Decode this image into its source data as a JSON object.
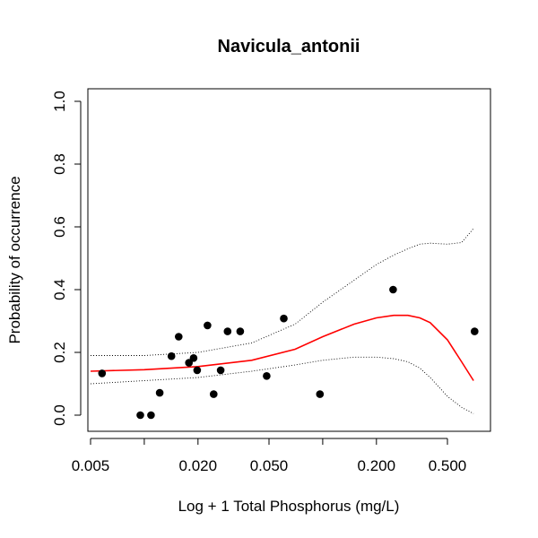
{
  "chart_data": {
    "type": "scatter",
    "title": "Navicula_antonii",
    "xlabel": "Log + 1 Total Phosphorus (mg/L)",
    "ylabel": "Probability of occurrence",
    "x_scale": "log",
    "xlim": [
      0.005,
      0.75
    ],
    "ylim": [
      0,
      1
    ],
    "x_ticks": [
      {
        "value": 0.005,
        "label": "0.005"
      },
      {
        "value": 0.02,
        "label": "0.020"
      },
      {
        "value": 0.05,
        "label": "0.050"
      },
      {
        "value": 0.2,
        "label": "0.200"
      },
      {
        "value": 0.5,
        "label": "0.500"
      }
    ],
    "x_minor_ticks": [
      0.01,
      0.1
    ],
    "y_ticks": [
      {
        "value": 0.0,
        "label": "0.0"
      },
      {
        "value": 0.2,
        "label": "0.2"
      },
      {
        "value": 0.4,
        "label": "0.4"
      },
      {
        "value": 0.6,
        "label": "0.6"
      },
      {
        "value": 0.8,
        "label": "0.8"
      },
      {
        "value": 1.0,
        "label": "1.0"
      }
    ],
    "grid": false,
    "points": [
      {
        "x": 0.0058,
        "y": 0.133
      },
      {
        "x": 0.0095,
        "y": 0.0
      },
      {
        "x": 0.0109,
        "y": 0.0
      },
      {
        "x": 0.0122,
        "y": 0.071
      },
      {
        "x": 0.0142,
        "y": 0.188
      },
      {
        "x": 0.0156,
        "y": 0.25
      },
      {
        "x": 0.0178,
        "y": 0.167
      },
      {
        "x": 0.0189,
        "y": 0.182
      },
      {
        "x": 0.0198,
        "y": 0.143
      },
      {
        "x": 0.0226,
        "y": 0.286
      },
      {
        "x": 0.0245,
        "y": 0.067
      },
      {
        "x": 0.0268,
        "y": 0.143
      },
      {
        "x": 0.0293,
        "y": 0.267
      },
      {
        "x": 0.0345,
        "y": 0.267
      },
      {
        "x": 0.0485,
        "y": 0.125
      },
      {
        "x": 0.0605,
        "y": 0.308
      },
      {
        "x": 0.0965,
        "y": 0.067
      },
      {
        "x": 0.248,
        "y": 0.4
      },
      {
        "x": 0.71,
        "y": 0.267
      }
    ],
    "fit": {
      "x": [
        0.005,
        0.01,
        0.02,
        0.04,
        0.07,
        0.1,
        0.15,
        0.2,
        0.25,
        0.3,
        0.35,
        0.4,
        0.5,
        0.6,
        0.7
      ],
      "y": [
        0.14,
        0.145,
        0.155,
        0.175,
        0.21,
        0.25,
        0.29,
        0.31,
        0.318,
        0.318,
        0.31,
        0.295,
        0.24,
        0.17,
        0.11
      ],
      "lower": [
        0.1,
        0.11,
        0.12,
        0.14,
        0.16,
        0.175,
        0.185,
        0.185,
        0.18,
        0.17,
        0.15,
        0.12,
        0.06,
        0.025,
        0.005
      ],
      "upper": [
        0.19,
        0.19,
        0.2,
        0.23,
        0.29,
        0.36,
        0.43,
        0.48,
        0.51,
        0.53,
        0.545,
        0.548,
        0.545,
        0.55,
        0.595
      ]
    },
    "colors": {
      "points": "#000000",
      "fit": "#ff0000",
      "band": "#000000",
      "axis": "#000000"
    }
  }
}
